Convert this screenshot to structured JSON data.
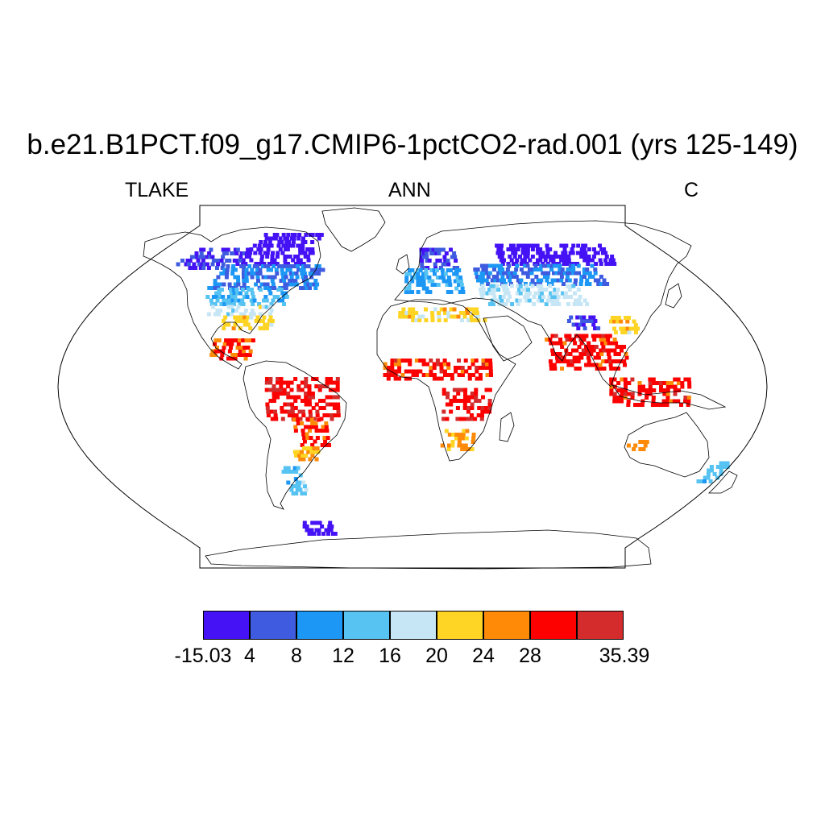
{
  "title": "b.e21.B1PCT.f09_g17.CMIP6-1pctCO2-rad.001 (yrs 125-149)",
  "subtitle": {
    "left": "TLAKE",
    "center": "ANN",
    "right": "C"
  },
  "map": {
    "projection": "robinson",
    "field": "TLAKE",
    "season": "ANN",
    "units": "C",
    "continent_outline": "#000000",
    "regions": [
      {
        "name": "arctic-canada",
        "value": -15.0,
        "lon": [
          -120,
          -72
        ],
        "lat": [
          62,
          78
        ]
      },
      {
        "name": "alaska-yukon",
        "value": 4,
        "lon": [
          -160,
          -120
        ],
        "lat": [
          60,
          70
        ]
      },
      {
        "name": "canada-boreal",
        "value": 8,
        "lon": [
          -125,
          -60
        ],
        "lat": [
          50,
          62
        ]
      },
      {
        "name": "north-us",
        "value": 13,
        "lon": [
          -122,
          -75
        ],
        "lat": [
          42,
          50
        ]
      },
      {
        "name": "central-us",
        "value": 18,
        "lon": [
          -115,
          -80
        ],
        "lat": [
          37,
          42
        ]
      },
      {
        "name": "south-us",
        "value": 22,
        "lon": [
          -105,
          -78
        ],
        "lat": [
          30,
          37
        ]
      },
      {
        "name": "mexico",
        "value": 29,
        "lon": [
          -105,
          -85
        ],
        "lat": [
          15,
          25
        ]
      },
      {
        "name": "amazon",
        "value": 31,
        "lon": [
          -75,
          -38
        ],
        "lat": [
          -15,
          5
        ]
      },
      {
        "name": "south-america-central",
        "value": 29,
        "lon": [
          -62,
          -45
        ],
        "lat": [
          -28,
          -15
        ]
      },
      {
        "name": "pampas",
        "value": 24,
        "lon": [
          -65,
          -52
        ],
        "lat": [
          -35,
          -28
        ]
      },
      {
        "name": "patagonia",
        "value": 14,
        "lon": [
          -75,
          -65
        ],
        "lat": [
          -52,
          -38
        ]
      },
      {
        "name": "scandinavia",
        "value": 4,
        "lon": [
          5,
          30
        ],
        "lat": [
          60,
          70
        ]
      },
      {
        "name": "europe",
        "value": 11,
        "lon": [
          -5,
          30
        ],
        "lat": [
          48,
          60
        ]
      },
      {
        "name": "siberia",
        "value": -15.0,
        "lon": [
          60,
          140
        ],
        "lat": [
          62,
          72
        ]
      },
      {
        "name": "russia-boreal",
        "value": 8,
        "lon": [
          40,
          120
        ],
        "lat": [
          52,
          62
        ]
      },
      {
        "name": "central-asia",
        "value": 17,
        "lon": [
          40,
          100
        ],
        "lat": [
          42,
          52
        ]
      },
      {
        "name": "mediterranean",
        "value": 22,
        "lon": [
          -8,
          40
        ],
        "lat": [
          34,
          40
        ]
      },
      {
        "name": "tibet",
        "value": 4,
        "lon": [
          85,
          100
        ],
        "lat": [
          30,
          36
        ]
      },
      {
        "name": "east-china",
        "value": 22,
        "lon": [
          108,
          122
        ],
        "lat": [
          28,
          36
        ]
      },
      {
        "name": "india-seasia",
        "value": 30,
        "lon": [
          70,
          110
        ],
        "lat": [
          10,
          27
        ]
      },
      {
        "name": "maritime-continent",
        "value": 30,
        "lon": [
          100,
          140
        ],
        "lat": [
          -8,
          5
        ]
      },
      {
        "name": "sahel",
        "value": 30,
        "lon": [
          -15,
          40
        ],
        "lat": [
          5,
          15
        ]
      },
      {
        "name": "central-africa",
        "value": 31,
        "lon": [
          15,
          40
        ],
        "lat": [
          -15,
          0
        ]
      },
      {
        "name": "southern-africa",
        "value": 25,
        "lon": [
          15,
          32
        ],
        "lat": [
          -30,
          -20
        ]
      },
      {
        "name": "australia-west",
        "value": 26,
        "lon": [
          115,
          125
        ],
        "lat": [
          -30,
          -25
        ]
      },
      {
        "name": "new-zealand",
        "value": 14,
        "lon": [
          168,
          178
        ],
        "lat": [
          -46,
          -36
        ]
      },
      {
        "name": "antarctica-coast",
        "value": -15.0,
        "lon": [
          -80,
          -60
        ],
        "lat": [
          -72,
          -65
        ]
      }
    ]
  },
  "colorbar": {
    "colors": [
      "#4412f5",
      "#3f5be0",
      "#1c97f5",
      "#56c3f2",
      "#c6e6f5",
      "#fed425",
      "#fe8a08",
      "#fd0000",
      "#d42c2c"
    ],
    "labels": [
      "-15.03",
      "4",
      "8",
      "12",
      "16",
      "20",
      "24",
      "28",
      "35.39"
    ]
  }
}
